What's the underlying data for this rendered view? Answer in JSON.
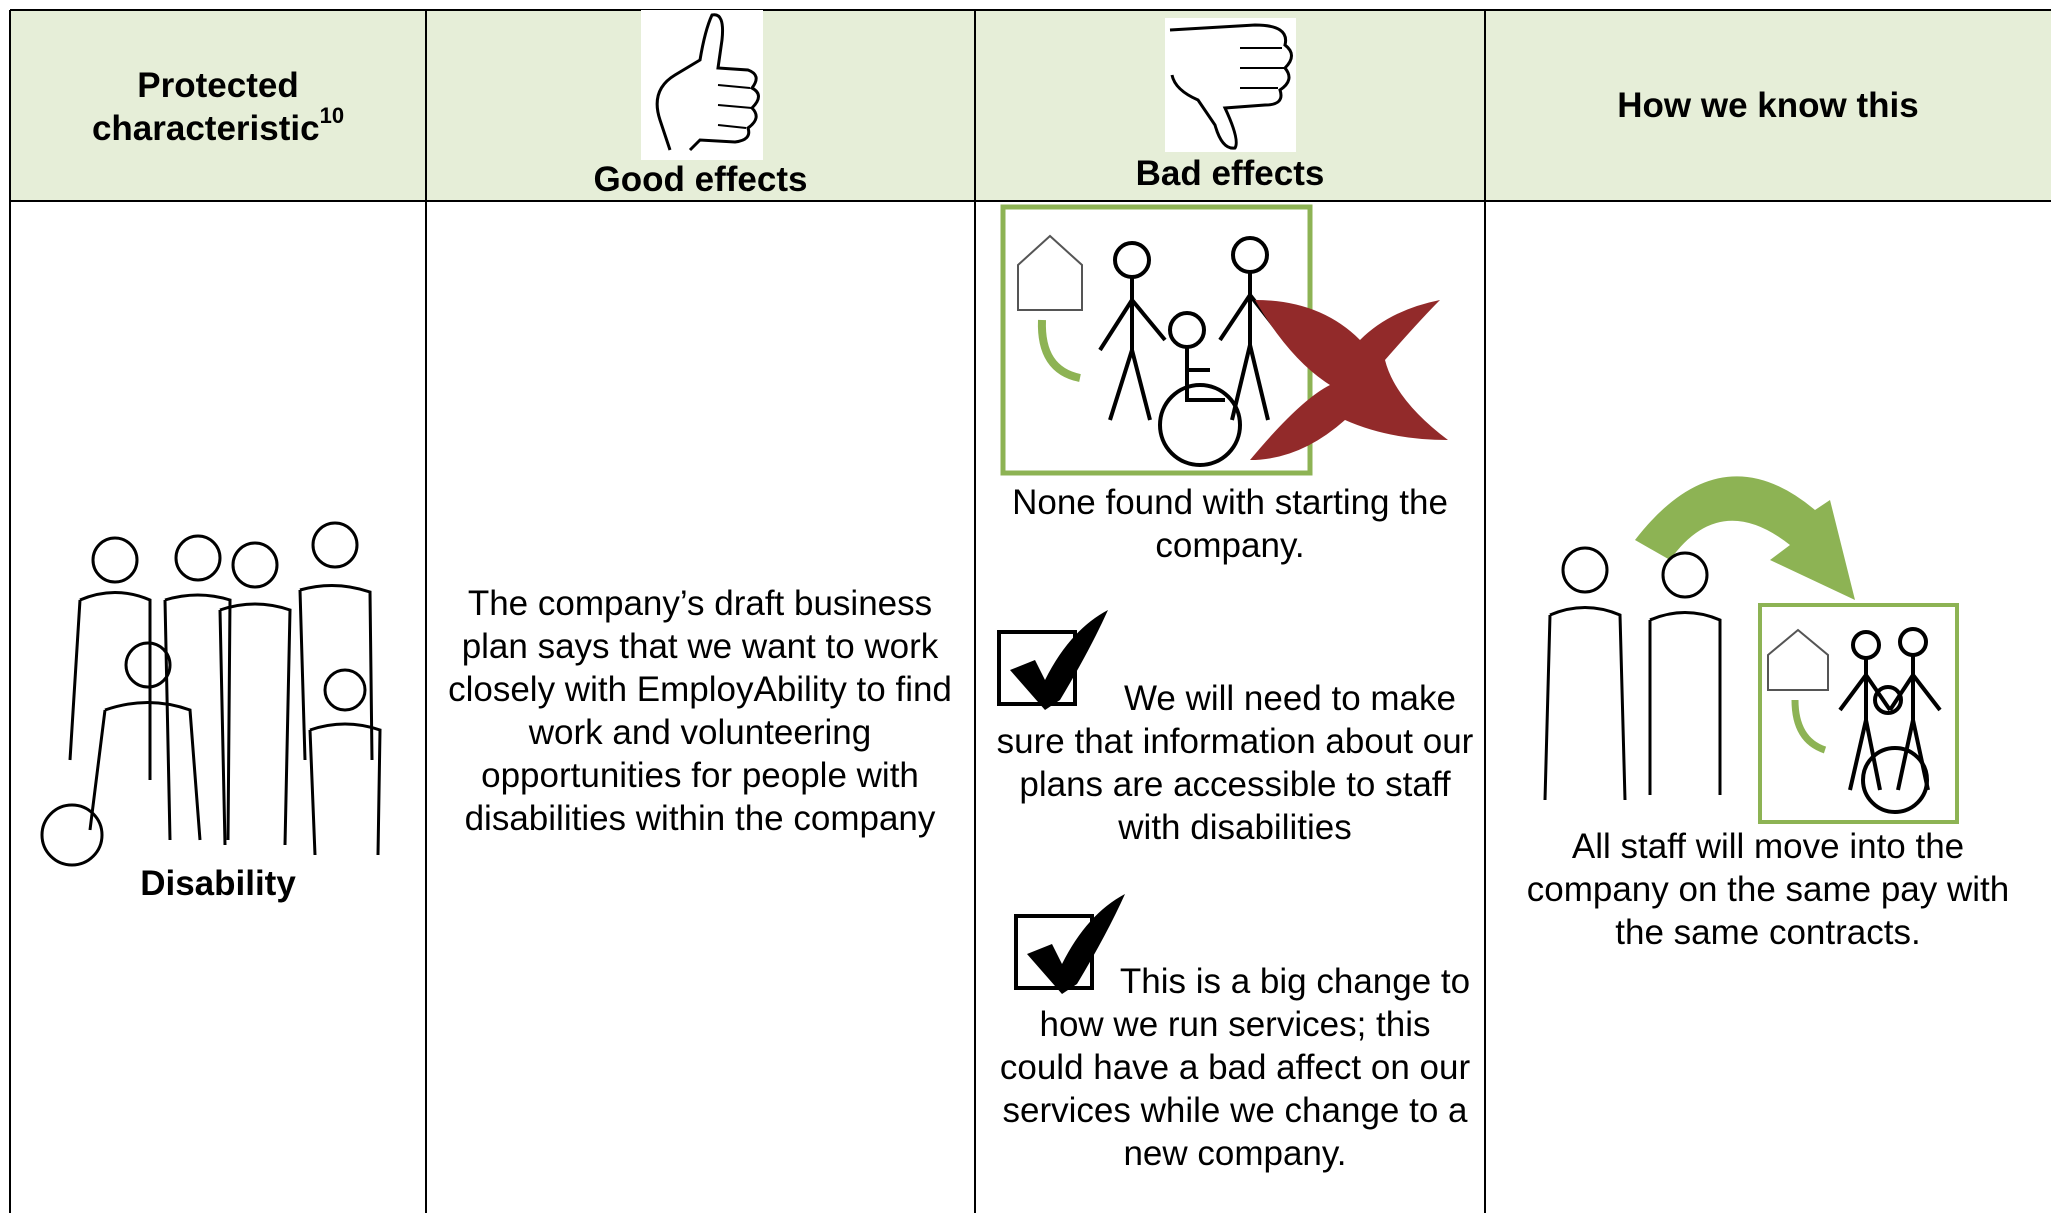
{
  "header": {
    "characteristic": "Protected characteristic",
    "footnote": "10",
    "good": "Good effects",
    "bad": "Bad effects",
    "evidence": "How we know this"
  },
  "rows": [
    {
      "characteristic": "Disability",
      "good": "The company’s draft business plan says that we want to work closely with EmployAbility to find work and volunteering opportunities for people with disabilities within the company",
      "bad": [
        "None found with starting the company.",
        "We will need to make sure that information about our plans are accessible to staff with disabilities",
        "This is a big change to how we run services; this could have a bad affect on our services while we change to a new company."
      ],
      "evidence": "All staff will move into the company on the same pay with the same contracts."
    }
  ]
}
